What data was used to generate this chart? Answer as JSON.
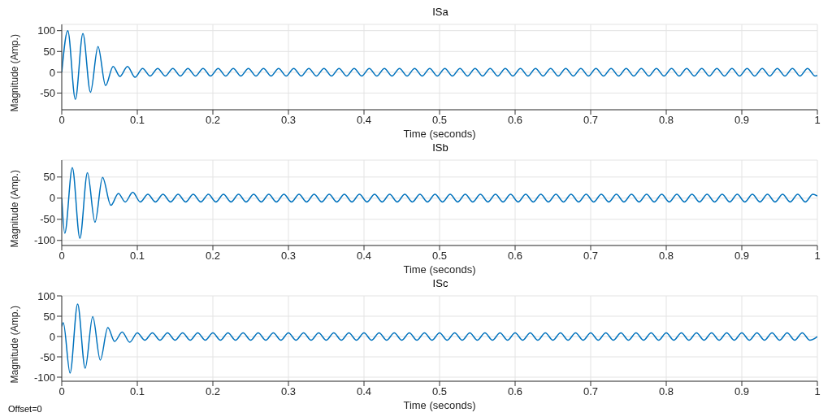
{
  "chart_data": [
    {
      "type": "line",
      "title": "ISa",
      "xlabel": "Time (seconds)",
      "ylabel": "Magnitude (Amp.)",
      "xlim": [
        0,
        1
      ],
      "xticks": [
        0,
        0.1,
        0.2,
        0.3,
        0.4,
        0.5,
        0.6,
        0.7,
        0.8,
        0.9,
        1
      ],
      "ylim": [
        -90,
        115
      ],
      "yticks": [
        -50,
        0,
        50,
        100
      ],
      "grid": true,
      "series": [
        {
          "color": "#0072bd",
          "x": [
            0,
            0.008,
            0.018,
            0.028,
            0.038,
            0.048,
            0.058,
            0.068,
            0.077,
            0.087,
            0.097,
            0.107,
            0.117,
            0.127,
            0.137,
            0.147,
            0.157,
            0.167,
            0.177,
            0.187,
            0.197,
            0.207,
            0.217,
            0.227,
            0.237,
            0.247,
            0.257,
            0.267,
            0.277,
            0.287,
            0.297,
            0.307,
            0.317,
            0.327,
            0.337,
            0.347,
            0.357,
            0.367,
            0.377,
            0.387,
            0.397,
            0.407,
            0.417,
            0.427,
            0.437,
            0.447,
            0.457,
            0.467,
            0.477,
            0.487,
            0.497,
            0.507,
            0.517,
            0.527,
            0.537,
            0.547,
            0.557,
            0.567,
            0.577,
            0.587,
            0.597,
            0.607,
            0.617,
            0.627,
            0.637,
            0.647,
            0.657,
            0.667,
            0.677,
            0.687,
            0.697,
            0.707,
            0.717,
            0.727,
            0.737,
            0.747,
            0.757,
            0.767,
            0.777,
            0.787,
            0.797,
            0.807,
            0.817,
            0.827,
            0.837,
            0.847,
            0.857,
            0.867,
            0.877,
            0.887,
            0.897,
            0.907,
            0.917,
            0.927,
            0.937,
            0.947,
            0.957,
            0.967,
            0.977,
            0.987,
            0.997,
            1
          ],
          "values": [
            0,
            100,
            -65,
            93,
            -48,
            62,
            -32,
            14,
            -10,
            14,
            -12,
            9,
            -9,
            9,
            -9,
            9,
            -9,
            9,
            -9,
            9,
            -9,
            9,
            -9,
            9,
            -9,
            9,
            -9,
            9,
            -9,
            9,
            -9,
            9,
            -9,
            9,
            -9,
            9,
            -9,
            9,
            -9,
            9,
            -9,
            9,
            -9,
            9,
            -9,
            9,
            -9,
            9,
            -9,
            9,
            -9,
            9,
            -9,
            9,
            -9,
            9,
            -9,
            9,
            -9,
            9,
            -9,
            9,
            -9,
            9,
            -9,
            9,
            -9,
            9,
            -9,
            9,
            -9,
            9,
            -9,
            9,
            -9,
            9,
            -9,
            9,
            -9,
            9,
            -9,
            9,
            -9,
            9,
            -9,
            9,
            -9,
            9,
            -9,
            9,
            -9,
            9,
            -9,
            9,
            -9,
            9,
            -9,
            9,
            -9,
            9,
            -9,
            -8
          ]
        }
      ]
    },
    {
      "type": "line",
      "title": "ISb",
      "xlabel": "Time (seconds)",
      "ylabel": "Magnitude (Amp.)",
      "xlim": [
        0,
        1
      ],
      "xticks": [
        0,
        0.1,
        0.2,
        0.3,
        0.4,
        0.5,
        0.6,
        0.7,
        0.8,
        0.9,
        1
      ],
      "ylim": [
        -112,
        90
      ],
      "yticks": [
        -100,
        -50,
        0,
        50
      ],
      "grid": true,
      "series": [
        {
          "color": "#0072bd",
          "x": [
            0,
            0.004,
            0.014,
            0.024,
            0.034,
            0.044,
            0.054,
            0.065,
            0.075,
            0.084,
            0.094,
            0.104,
            0.114,
            0.124,
            0.134,
            0.144,
            0.154,
            0.164,
            0.174,
            0.184,
            0.194,
            0.204,
            0.214,
            0.224,
            0.234,
            0.244,
            0.254,
            0.264,
            0.274,
            0.284,
            0.294,
            0.304,
            0.314,
            0.324,
            0.334,
            0.344,
            0.354,
            0.364,
            0.374,
            0.384,
            0.394,
            0.404,
            0.414,
            0.424,
            0.434,
            0.444,
            0.454,
            0.464,
            0.474,
            0.484,
            0.494,
            0.504,
            0.514,
            0.524,
            0.534,
            0.544,
            0.554,
            0.564,
            0.574,
            0.584,
            0.594,
            0.604,
            0.614,
            0.624,
            0.634,
            0.644,
            0.654,
            0.664,
            0.674,
            0.684,
            0.694,
            0.704,
            0.714,
            0.724,
            0.734,
            0.744,
            0.754,
            0.764,
            0.774,
            0.784,
            0.794,
            0.804,
            0.814,
            0.824,
            0.834,
            0.844,
            0.854,
            0.864,
            0.874,
            0.884,
            0.894,
            0.904,
            0.914,
            0.924,
            0.934,
            0.944,
            0.954,
            0.964,
            0.974,
            0.984,
            0.994,
            1
          ],
          "values": [
            0,
            -83,
            72,
            -95,
            60,
            -57,
            49,
            -17,
            11,
            -9,
            14,
            -9,
            9,
            -9,
            9,
            -9,
            9,
            -9,
            9,
            -9,
            9,
            -9,
            9,
            -9,
            9,
            -9,
            9,
            -9,
            9,
            -9,
            9,
            -9,
            9,
            -9,
            9,
            -9,
            9,
            -9,
            9,
            -9,
            9,
            -9,
            9,
            -9,
            9,
            -9,
            9,
            -9,
            9,
            -9,
            9,
            -9,
            9,
            -9,
            9,
            -9,
            9,
            -9,
            9,
            -9,
            9,
            -9,
            9,
            -9,
            9,
            -9,
            9,
            -9,
            9,
            -9,
            9,
            -9,
            9,
            -9,
            9,
            -9,
            9,
            -9,
            9,
            -9,
            9,
            -9,
            9,
            -9,
            9,
            -9,
            9,
            -9,
            9,
            -9,
            9,
            -9,
            9,
            -9,
            9,
            -9,
            9,
            -9,
            9,
            -9,
            9,
            5
          ]
        }
      ]
    },
    {
      "type": "line",
      "title": "ISc",
      "xlabel": "Time (seconds)",
      "ylabel": "Magnitude (Amp.)",
      "xlim": [
        0,
        1
      ],
      "xticks": [
        0,
        0.1,
        0.2,
        0.3,
        0.4,
        0.5,
        0.6,
        0.7,
        0.8,
        0.9,
        1
      ],
      "ylim": [
        -110,
        100
      ],
      "yticks": [
        -100,
        -50,
        0,
        50,
        100
      ],
      "grid": true,
      "annotations": [
        "Offset=0"
      ],
      "series": [
        {
          "color": "#0072bd",
          "x": [
            0,
            0.002,
            0.011,
            0.021,
            0.031,
            0.041,
            0.051,
            0.061,
            0.07,
            0.08,
            0.09,
            0.1,
            0.11,
            0.12,
            0.13,
            0.14,
            0.15,
            0.16,
            0.17,
            0.18,
            0.19,
            0.2,
            0.21,
            0.22,
            0.23,
            0.24,
            0.25,
            0.26,
            0.27,
            0.28,
            0.29,
            0.3,
            0.31,
            0.32,
            0.33,
            0.34,
            0.35,
            0.36,
            0.37,
            0.38,
            0.39,
            0.4,
            0.41,
            0.42,
            0.43,
            0.44,
            0.45,
            0.46,
            0.47,
            0.48,
            0.49,
            0.5,
            0.51,
            0.52,
            0.53,
            0.54,
            0.55,
            0.56,
            0.57,
            0.58,
            0.59,
            0.6,
            0.61,
            0.62,
            0.63,
            0.64,
            0.65,
            0.66,
            0.67,
            0.68,
            0.69,
            0.7,
            0.71,
            0.72,
            0.73,
            0.74,
            0.75,
            0.76,
            0.77,
            0.78,
            0.79,
            0.8,
            0.81,
            0.82,
            0.83,
            0.84,
            0.85,
            0.86,
            0.87,
            0.88,
            0.89,
            0.9,
            0.91,
            0.92,
            0.93,
            0.94,
            0.95,
            0.96,
            0.97,
            0.98,
            0.99,
            1
          ],
          "values": [
            25,
            34,
            -90,
            80,
            -78,
            49,
            -58,
            22,
            -12,
            11,
            -14,
            9,
            -9,
            9,
            -9,
            9,
            -9,
            9,
            -9,
            9,
            -9,
            9,
            -9,
            9,
            -9,
            9,
            -9,
            9,
            -9,
            9,
            -9,
            9,
            -9,
            9,
            -9,
            9,
            -9,
            9,
            -9,
            9,
            -9,
            9,
            -9,
            9,
            -9,
            9,
            -9,
            9,
            -9,
            9,
            -9,
            9,
            -9,
            9,
            -9,
            9,
            -9,
            9,
            -9,
            9,
            -9,
            9,
            -9,
            9,
            -9,
            9,
            -9,
            9,
            -9,
            9,
            -9,
            9,
            -9,
            9,
            -9,
            9,
            -9,
            9,
            -9,
            9,
            -9,
            9,
            -9,
            9,
            -9,
            9,
            -9,
            9,
            -9,
            9,
            -9,
            9,
            -9,
            9,
            -9,
            9,
            -9,
            9,
            -9,
            9,
            -9,
            0
          ]
        }
      ]
    }
  ]
}
